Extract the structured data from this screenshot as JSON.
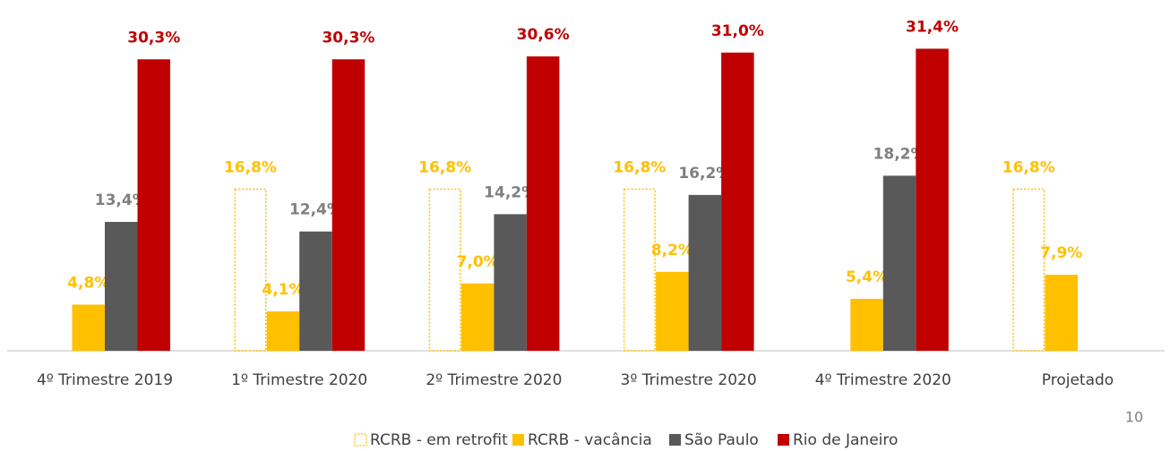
{
  "chart_data": {
    "type": "bar",
    "categories": [
      "4º Trimestre 2019",
      "1º Trimestre 2020",
      "2º Trimestre 2020",
      "3º Trimestre 2020",
      "4º Trimestre 2020",
      "Projetado"
    ],
    "series": [
      {
        "name": "RCRB - em retrofit",
        "color": "#ffc000",
        "style": "dotted-outline",
        "values": [
          null,
          16.8,
          16.8,
          16.8,
          null,
          16.8
        ],
        "value_labels": [
          null,
          "16,8%",
          "16,8%",
          "16,8%",
          null,
          "16,8%"
        ]
      },
      {
        "name": "RCRB - vacância",
        "color": "#ffc000",
        "values": [
          4.8,
          4.1,
          7.0,
          8.2,
          5.4,
          7.9
        ],
        "value_labels": [
          "4,8%",
          "4,1%",
          "7,0%",
          "8,2%",
          "5,4%",
          "7,9%"
        ]
      },
      {
        "name": "São Paulo",
        "color": "#595959",
        "label_color": "#808080",
        "values": [
          13.4,
          12.4,
          14.2,
          16.2,
          18.2,
          null
        ],
        "value_labels": [
          "13,4%",
          "12,4%",
          "14,2%",
          "16,2%",
          "18,2%",
          null
        ]
      },
      {
        "name": "Rio de Janeiro",
        "color": "#c00000",
        "values": [
          30.3,
          30.3,
          30.6,
          31.0,
          31.4,
          null
        ],
        "value_labels": [
          "30,3%",
          "30,3%",
          "30,6%",
          "31,0%",
          "31,4%",
          null
        ]
      }
    ],
    "legend": "bottom"
  },
  "page_number": "10"
}
